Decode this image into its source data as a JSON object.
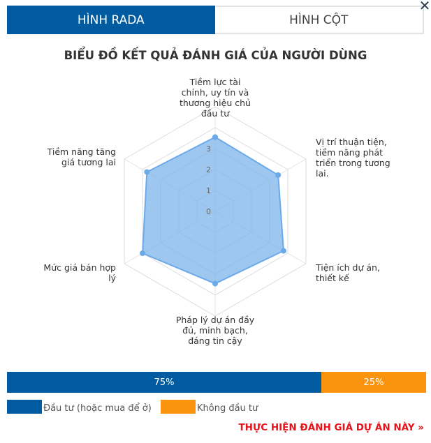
{
  "tabs": [
    {
      "label": "HÌNH RADA",
      "active": true
    },
    {
      "label": "HÌNH CỘT",
      "active": false
    }
  ],
  "close_icon": "close-icon",
  "chart_data": {
    "type": "radar",
    "title": "BIỂU ĐỒ KẾT QUẢ ĐÁNH GIÁ CỦA NGƯỜI DÙNG",
    "categories": [
      [
        "Tiềm lực tài",
        "chính, uy tín và",
        "thương hiệu chủ",
        "đầu tư"
      ],
      [
        "Vị trí thuận tiện,",
        "tiềm năng phát",
        "triển trong tương",
        "lai."
      ],
      [
        "Tiện ích dự án,",
        "thiết kế"
      ],
      [
        "Pháp lý dự án đầy",
        "đủ, minh bạch,",
        "đáng tin cậy"
      ],
      [
        "Mức giá bán hợp",
        "lý"
      ],
      [
        "Tiềm năng tăng",
        "giá tương lai"
      ]
    ],
    "values": [
      3.55,
      3.47,
      3.77,
      3.45,
      4.0,
      3.76
    ],
    "tick_labels": [
      "0",
      "1",
      "2",
      "3"
    ],
    "rmax": 5,
    "grid": true,
    "fill_color": "#7db4ea",
    "line_color": "#6aa9ea"
  },
  "split_bar": {
    "segments": [
      {
        "label": "75%",
        "value": 75,
        "color": "#005ba1",
        "legend": "Đầu tư (hoặc mua để ở)"
      },
      {
        "label": "25%",
        "value": 25,
        "color": "#fa930d",
        "legend": "Không đầu tư"
      }
    ]
  },
  "cta": "THỰC HIỆN ĐÁNH GIÁ DỰ ÁN NÀY »"
}
